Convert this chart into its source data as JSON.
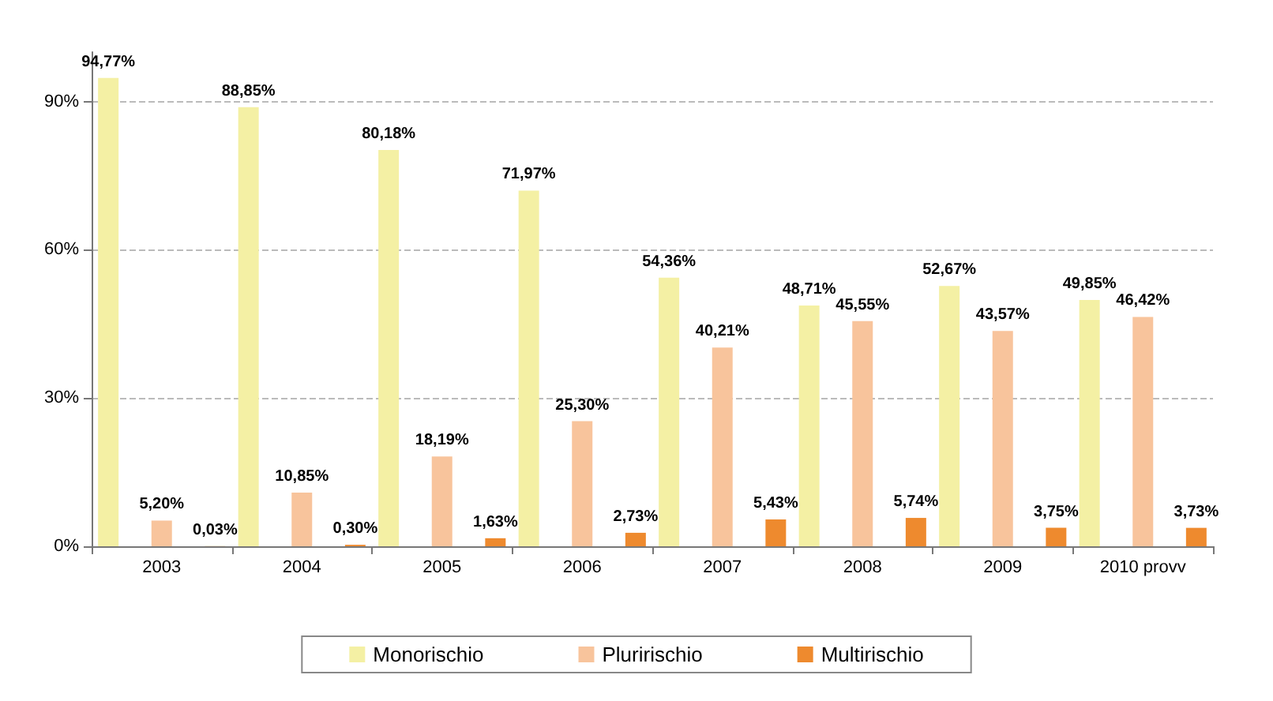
{
  "chart_data": {
    "type": "bar",
    "categories": [
      "2003",
      "2004",
      "2005",
      "2006",
      "2007",
      "2008",
      "2009",
      "2010 provv"
    ],
    "series": [
      {
        "name": "Monorischio",
        "color": "#f4f0a4",
        "values": [
          94.77,
          88.85,
          80.18,
          71.97,
          54.36,
          48.71,
          52.67,
          49.85
        ],
        "value_labels": [
          "94,77%",
          "88,85%",
          "80,18%",
          "71,97%",
          "54,36%",
          "48,71%",
          "52,67%",
          "49,85%"
        ]
      },
      {
        "name": "Pluririschio",
        "color": "#f8c49c",
        "values": [
          5.2,
          10.85,
          18.19,
          25.3,
          40.21,
          45.55,
          43.57,
          46.42
        ],
        "value_labels": [
          "5,20%",
          "10,85%",
          "18,19%",
          "25,30%",
          "40,21%",
          "45,55%",
          "43,57%",
          "46,42%"
        ]
      },
      {
        "name": "Multirischio",
        "color": "#ee8a2e",
        "values": [
          0.03,
          0.3,
          1.63,
          2.73,
          5.43,
          5.74,
          3.75,
          3.73
        ],
        "value_labels": [
          "0,03%",
          "0,30%",
          "1,63%",
          "2,73%",
          "5,43%",
          "5,74%",
          "3,75%",
          "3,73%"
        ]
      }
    ],
    "ylim": [
      0,
      100
    ],
    "yticks": [
      {
        "value": 0,
        "label": "0%"
      },
      {
        "value": 30,
        "label": "30%"
      },
      {
        "value": 60,
        "label": "60%"
      },
      {
        "value": 90,
        "label": "90%"
      }
    ],
    "grid": "y",
    "legend": "bottom"
  }
}
